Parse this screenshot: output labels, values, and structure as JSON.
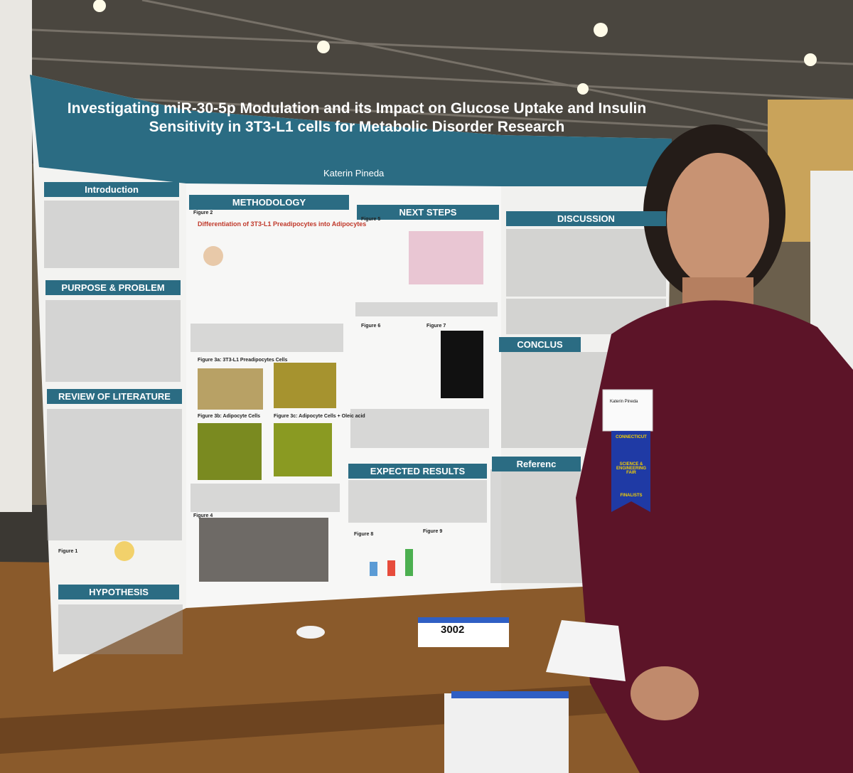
{
  "poster": {
    "title": "Investigating miR-30-5p Modulation and its Impact on Glucose Uptake and Insulin Sensitivity in 3T3-L1 cells for Metabolic Disorder Research",
    "author": "Katerin Pineda",
    "sections": [
      "Introduction",
      "PURPOSE & PROBLEM",
      "REVIEW OF LITERATURE",
      "HYPOTHESIS",
      "METHODOLOGY",
      "NEXT STEPS",
      "EXPECTED RESULTS",
      "DISCUSSION",
      "CONCLUS",
      "Referenc"
    ],
    "figure_titles": [
      "Figure 1",
      "Figure 2",
      "Differentiation of 3T3-L1 Preadipocytes into Adipocytes",
      "Figure 3a: 3T3-L1 Preadipocytes Cells",
      "Figure 3b: Adipocyte Cells",
      "Figure 3c: Adipocyte Cells + Oleic acid",
      "Figure 4",
      "Figure 5",
      "Figure 6",
      "Figure 7",
      "Figure 8",
      "Figure 9"
    ]
  },
  "table_sign": "3002",
  "badge": {
    "name": "Katerin Pineda",
    "ribbon": [
      "CONNECTICUT",
      "SCIENCE & ENGINEERING FAIR",
      "FINALISTS"
    ]
  }
}
